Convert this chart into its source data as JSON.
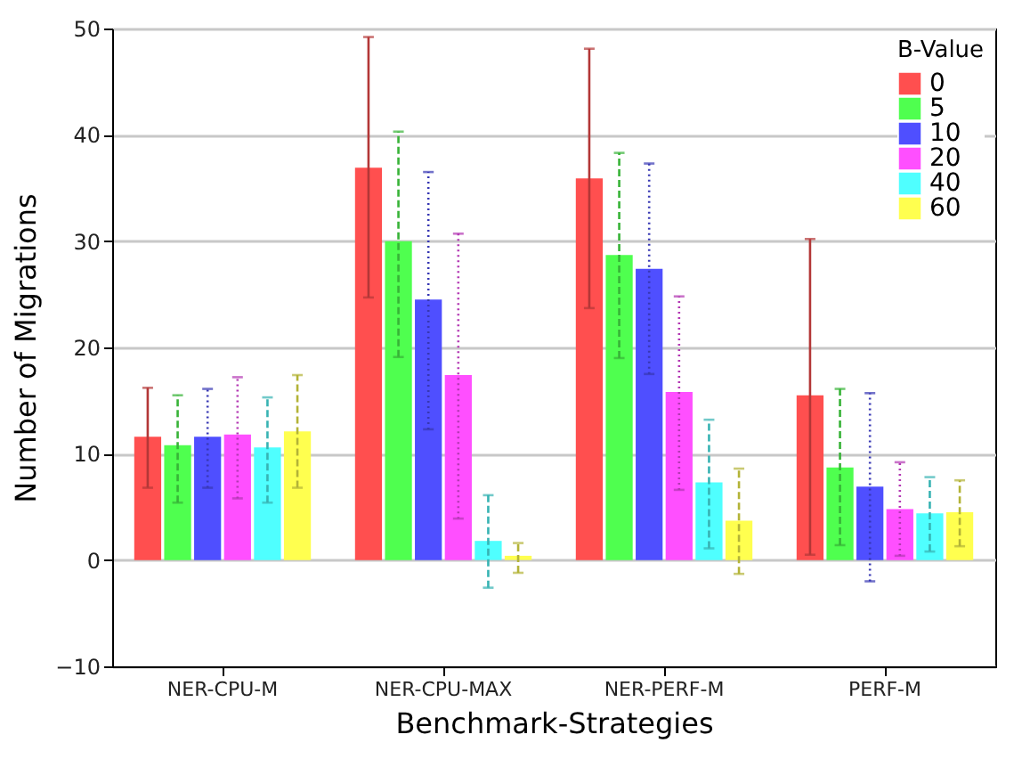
{
  "chart_data": {
    "type": "bar",
    "xlabel": "Benchmark-Strategies",
    "ylabel": "Number of Migrations",
    "legend_title": "B-Value",
    "legend": "top right",
    "grid": "y",
    "categories": [
      "NER-CPU-M",
      "NER-CPU-MAX",
      "NER-PERF-M",
      "PERF-M"
    ],
    "ylim": [
      -10,
      50
    ],
    "yticks": [
      -10,
      0,
      10,
      20,
      30,
      40,
      50
    ],
    "series": [
      {
        "name": "0",
        "color": "#ff4f4f",
        "line_style": "solid",
        "values": [
          11.6,
          36.9,
          35.9,
          15.5
        ],
        "errors": [
          [
            6.8,
            16.2
          ],
          [
            24.7,
            49.2
          ],
          [
            23.7,
            48.1
          ],
          [
            0.5,
            30.2
          ]
        ]
      },
      {
        "name": "5",
        "color": "#4fff4f",
        "line_style": "dashed",
        "values": [
          10.8,
          30.0,
          28.7,
          8.7
        ],
        "errors": [
          [
            5.4,
            15.5
          ],
          [
            19.1,
            40.3
          ],
          [
            19.0,
            38.3
          ],
          [
            1.4,
            16.1
          ]
        ]
      },
      {
        "name": "10",
        "color": "#4f4fff",
        "line_style": "dotted",
        "values": [
          11.6,
          24.5,
          27.4,
          6.9
        ],
        "errors": [
          [
            6.8,
            16.1
          ],
          [
            12.3,
            36.5
          ],
          [
            17.5,
            37.3
          ],
          [
            -2.0,
            15.7
          ]
        ]
      },
      {
        "name": "20",
        "color": "#ff4fff",
        "line_style": "dotted",
        "values": [
          11.8,
          17.4,
          15.8,
          4.8
        ],
        "errors": [
          [
            5.8,
            17.2
          ],
          [
            3.9,
            30.7
          ],
          [
            6.6,
            24.8
          ],
          [
            0.4,
            9.2
          ]
        ]
      },
      {
        "name": "40",
        "color": "#4fffff",
        "line_style": "dashed",
        "values": [
          10.6,
          1.8,
          7.3,
          4.4
        ],
        "errors": [
          [
            5.4,
            15.3
          ],
          [
            -2.6,
            6.1
          ],
          [
            1.1,
            13.2
          ],
          [
            0.8,
            7.8
          ]
        ]
      },
      {
        "name": "60",
        "color": "#ffff4f",
        "line_style": "dashed",
        "values": [
          12.1,
          0.4,
          3.7,
          4.5
        ],
        "errors": [
          [
            6.8,
            17.4
          ],
          [
            -1.2,
            1.6
          ],
          [
            -1.3,
            8.6
          ],
          [
            1.3,
            7.5
          ]
        ]
      }
    ]
  }
}
